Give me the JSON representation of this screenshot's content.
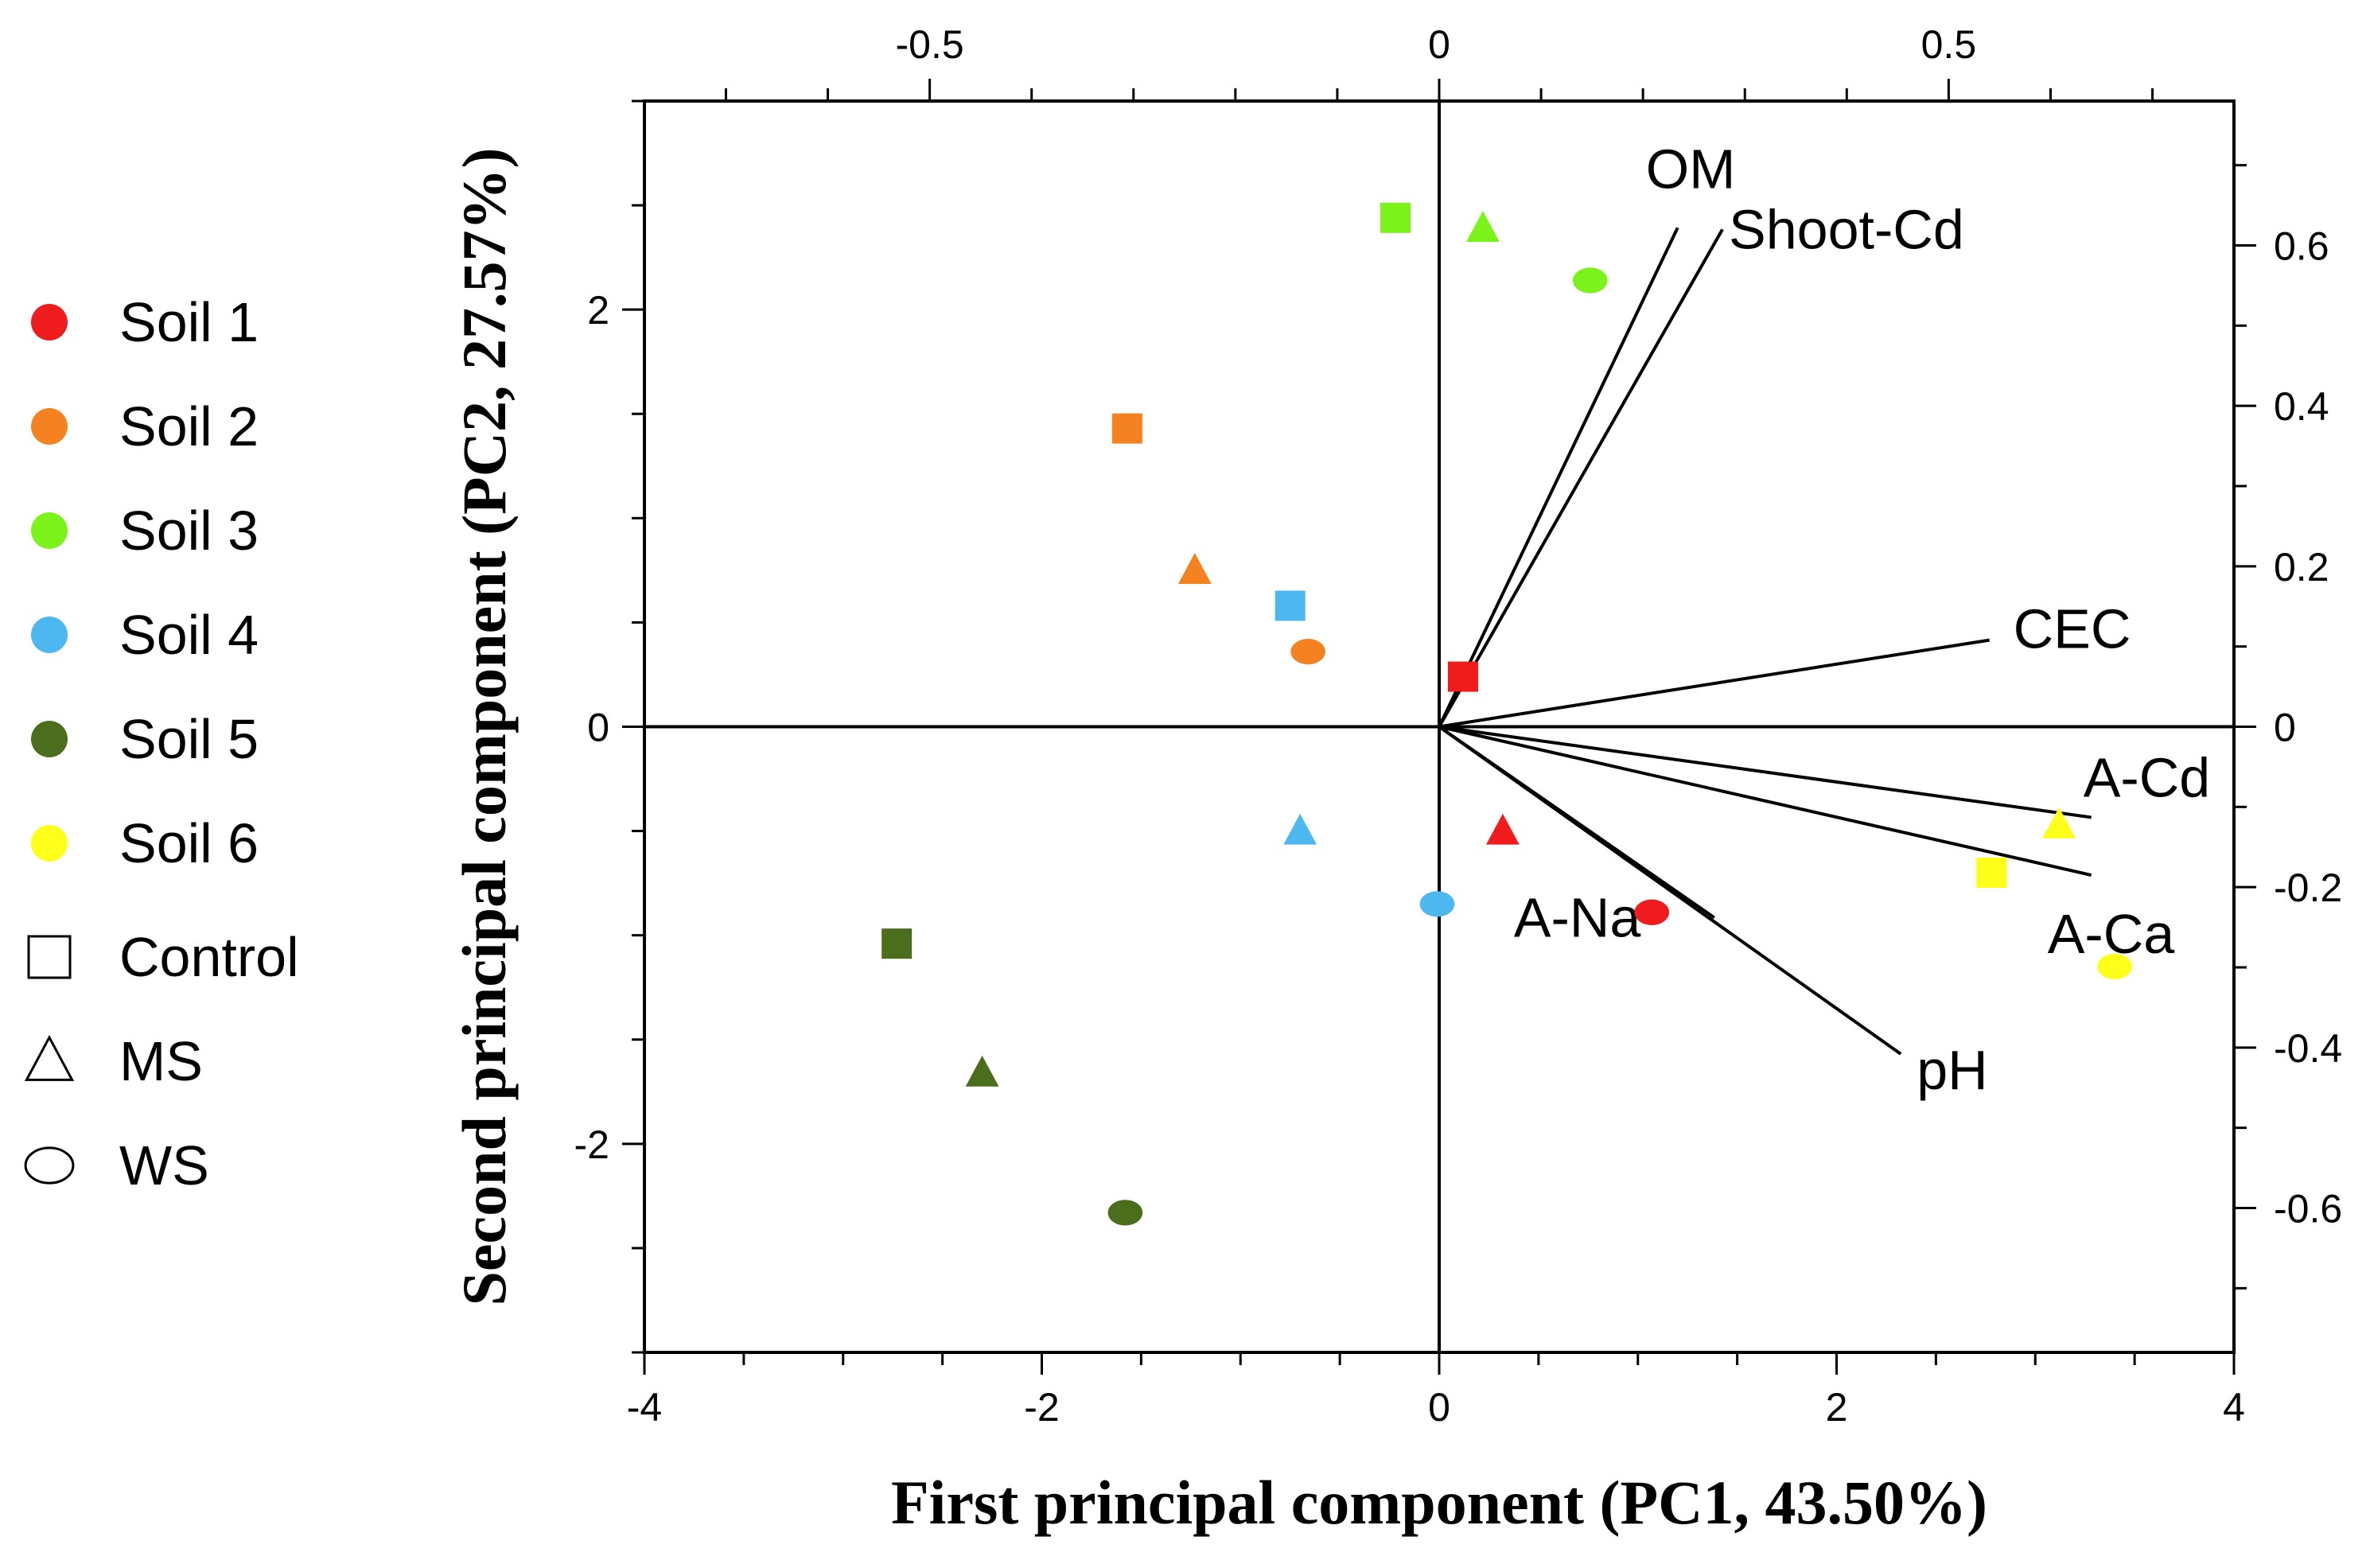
{
  "chart_data": {
    "type": "scatter",
    "title": "",
    "xlabel": "First principal component (PC1, 43.50%)",
    "ylabel": "Second principal component (PC2, 27.57%)",
    "xlim": [
      -4,
      4
    ],
    "ylim": [
      -3,
      3
    ],
    "x_ticks": [
      -4,
      -2,
      0,
      2,
      4
    ],
    "x_tick_labels": [
      "-4",
      "-2",
      "0",
      "2",
      "4"
    ],
    "y_ticks": [
      -2,
      0,
      2
    ],
    "y_tick_labels": [
      "-2",
      "0",
      "2"
    ],
    "top_axis": {
      "lim": [
        -0.78,
        0.78
      ],
      "ticks": [
        -0.5,
        0,
        0.5
      ],
      "tick_labels": [
        "-0.5",
        "0",
        "0.5"
      ]
    },
    "right_axis": {
      "lim": [
        -0.78,
        0.78
      ],
      "ticks": [
        0.6,
        0.4,
        0.2,
        0,
        -0.2,
        -0.4,
        -0.6
      ],
      "tick_labels": [
        "0.6",
        "0.4",
        "0.2",
        "0",
        "-0.2",
        "-0.4",
        "-0.6"
      ]
    },
    "grid": false,
    "legend_position": "left",
    "soils": [
      {
        "name": "Soil 1",
        "color": "#ee1c1c"
      },
      {
        "name": "Soil 2",
        "color": "#f58220"
      },
      {
        "name": "Soil 3",
        "color": "#7cf21b"
      },
      {
        "name": "Soil 4",
        "color": "#4db8f0"
      },
      {
        "name": "Soil 5",
        "color": "#4a6e1c"
      },
      {
        "name": "Soil 6",
        "color": "#ffff1a"
      }
    ],
    "treatments": [
      {
        "name": "Control",
        "shape": "square"
      },
      {
        "name": "MS",
        "shape": "triangle"
      },
      {
        "name": "WS",
        "shape": "circle"
      }
    ],
    "scores": [
      {
        "soil": "Soil 1",
        "treatment": "Control",
        "x": 0.12,
        "y": 0.24
      },
      {
        "soil": "Soil 1",
        "treatment": "MS",
        "x": 0.32,
        "y": -0.5
      },
      {
        "soil": "Soil 1",
        "treatment": "WS",
        "x": 1.07,
        "y": -0.89
      },
      {
        "soil": "Soil 2",
        "treatment": "Control",
        "x": -1.57,
        "y": 1.43
      },
      {
        "soil": "Soil 2",
        "treatment": "MS",
        "x": -1.23,
        "y": 0.75
      },
      {
        "soil": "Soil 2",
        "treatment": "WS",
        "x": -0.66,
        "y": 0.36
      },
      {
        "soil": "Soil 3",
        "treatment": "Control",
        "x": -0.22,
        "y": 2.44
      },
      {
        "soil": "Soil 3",
        "treatment": "MS",
        "x": 0.22,
        "y": 2.39
      },
      {
        "soil": "Soil 3",
        "treatment": "WS",
        "x": 0.76,
        "y": 2.14
      },
      {
        "soil": "Soil 4",
        "treatment": "Control",
        "x": -0.75,
        "y": 0.58
      },
      {
        "soil": "Soil 4",
        "treatment": "MS",
        "x": -0.7,
        "y": -0.5
      },
      {
        "soil": "Soil 4",
        "treatment": "WS",
        "x": -0.01,
        "y": -0.85
      },
      {
        "soil": "Soil 5",
        "treatment": "Control",
        "x": -2.73,
        "y": -1.04
      },
      {
        "soil": "Soil 5",
        "treatment": "MS",
        "x": -2.3,
        "y": -1.66
      },
      {
        "soil": "Soil 5",
        "treatment": "WS",
        "x": -1.58,
        "y": -2.33
      },
      {
        "soil": "Soil 6",
        "treatment": "Control",
        "x": 2.78,
        "y": -0.7
      },
      {
        "soil": "Soil 6",
        "treatment": "MS",
        "x": 3.12,
        "y": -0.47
      },
      {
        "soil": "Soil 6",
        "treatment": "WS",
        "x": 3.4,
        "y": -1.15
      }
    ],
    "loadings": [
      {
        "name": "OM",
        "x": 0.234,
        "y": 0.622
      },
      {
        "name": "Shoot-Cd",
        "x": 0.278,
        "y": 0.62
      },
      {
        "name": "CEC",
        "x": 0.54,
        "y": 0.108
      },
      {
        "name": "A-Cd",
        "x": 0.64,
        "y": -0.113
      },
      {
        "name": "A-Ca",
        "x": 0.64,
        "y": -0.185
      },
      {
        "name": "pH",
        "x": 0.453,
        "y": -0.408
      },
      {
        "name": "A-Na",
        "x": 0.27,
        "y": -0.238
      }
    ]
  }
}
